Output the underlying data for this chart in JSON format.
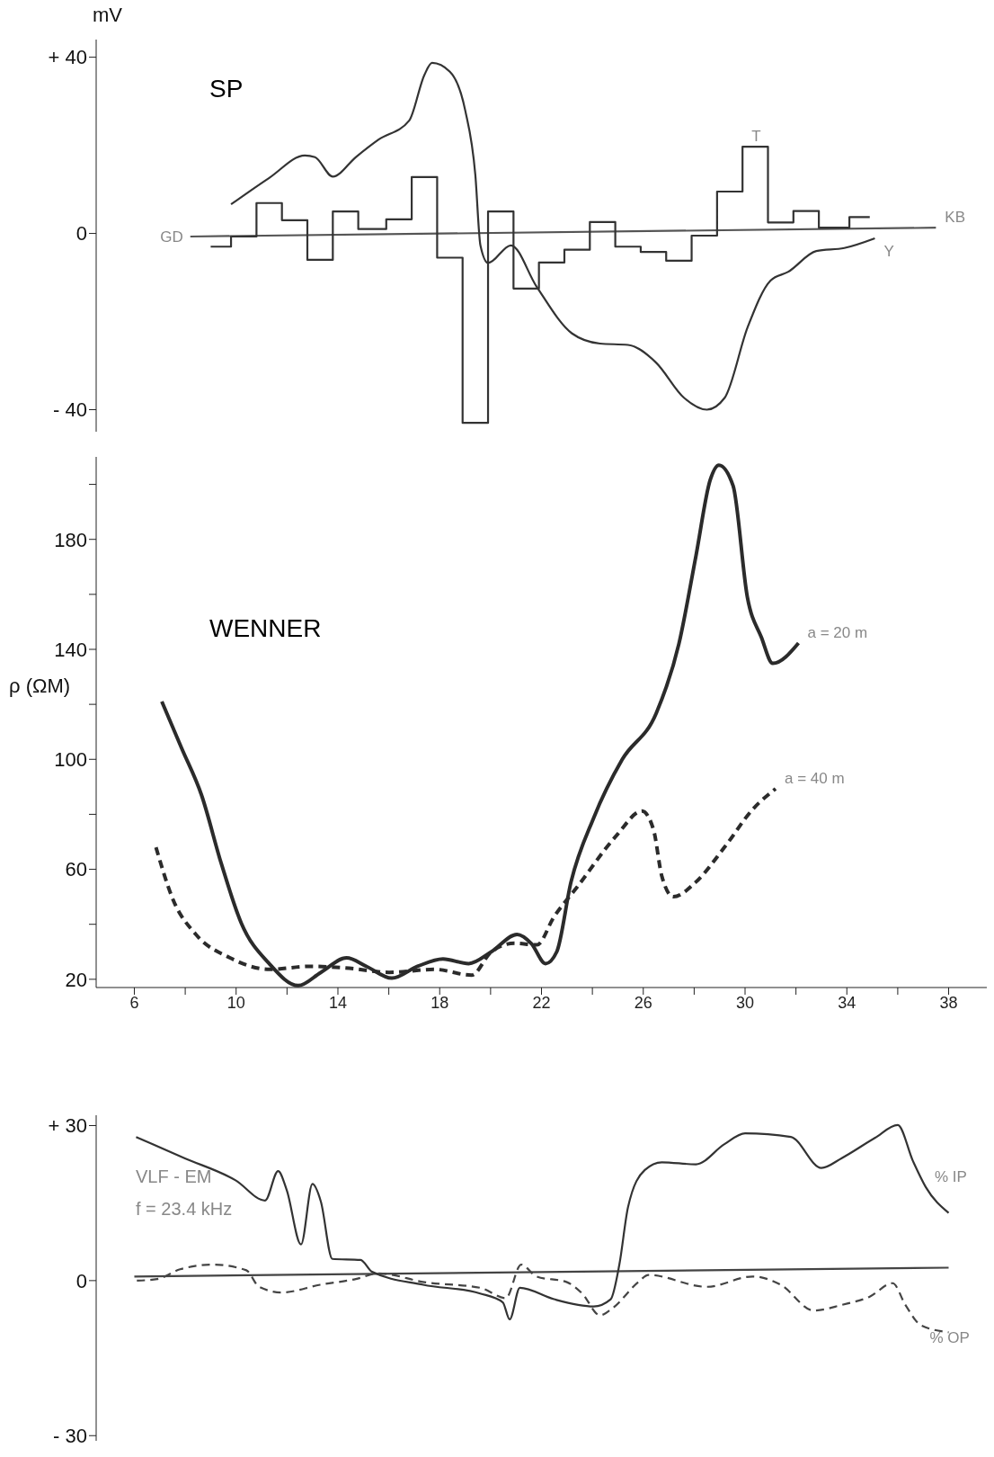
{
  "chart_data": [
    {
      "type": "line",
      "title": "SP",
      "ylabel": "mV",
      "xlim": [
        4.5,
        39.5
      ],
      "ylim": [
        -45,
        44
      ],
      "yticks": [
        {
          "value": 40,
          "label": "+ 40"
        },
        0,
        {
          "value": -40,
          "label": "- 40"
        }
      ],
      "tick_labels": "y",
      "legend": false,
      "grid": false,
      "series": [
        {
          "type": "line",
          "color": "#555555",
          "line_style": "solid",
          "x": [
            8.2,
            37.5
          ],
          "values": [
            -0.7,
            1.3
          ]
        },
        {
          "type": "step",
          "color": "#333333",
          "line_style": "solid",
          "x": [
            9,
            9.8,
            10.8,
            11.8,
            12.8,
            13.8,
            14.8,
            15.9,
            16.9,
            17.9,
            18.9,
            19.9,
            20.9,
            21.9,
            22.9,
            23.9,
            24.9,
            25.9,
            26.9,
            27.9,
            28.9,
            29.9,
            30.9,
            31.9,
            32.9,
            34.1,
            34.9
          ],
          "values": [
            -3,
            -0.7,
            6.9,
            3,
            -6,
            5,
            1,
            3.2,
            12.8,
            -5.5,
            -43,
            5,
            -12.5,
            -6.6,
            -3.7,
            2.6,
            -3,
            -4.2,
            -6.2,
            -0.5,
            9.5,
            19.7,
            2.5,
            5.1,
            1.3,
            3.7,
            3.7
          ]
        },
        {
          "type": "line",
          "color": "#333333",
          "line_style": "solid",
          "x": [
            9.8,
            11.3,
            12.7,
            13.1,
            13.8,
            14.7,
            15.6,
            16.8,
            17.4,
            17.7,
            18.4,
            19.0,
            19.4,
            19.6,
            19.9,
            20.8,
            21.8,
            23.2,
            24.3,
            25.4,
            26.5,
            27.6,
            28.5,
            29.2,
            30.1,
            31.0,
            31.7,
            32.8,
            33.9,
            35.1
          ],
          "values": [
            6.6,
            12.6,
            17.7,
            17.3,
            12.9,
            17.3,
            21.3,
            25.6,
            36,
            38.7,
            36.7,
            28,
            13.3,
            -2.7,
            -6.7,
            -2.7,
            -12,
            -22.7,
            -25,
            -25.3,
            -29.3,
            -37.3,
            -40,
            -37.3,
            -21.3,
            -10.7,
            -8.7,
            -4,
            -3.3,
            -1.1
          ]
        }
      ],
      "annotations": [
        {
          "text": "GD",
          "x": 8.2,
          "y": -0.7
        },
        {
          "text": "KB",
          "x": 37.5,
          "y": 1.3
        },
        {
          "text": "T",
          "x": 29.9,
          "y": 19.7
        },
        {
          "text": "Y",
          "x": 35.1,
          "y": -1.1
        }
      ]
    },
    {
      "type": "line",
      "title": "WENNER",
      "ylabel": "ρ (ΩM)",
      "xlim": [
        4.5,
        39.5
      ],
      "ylim": [
        17,
        210
      ],
      "xticks": [
        6,
        {
          "value": 8,
          "label": null
        },
        10,
        {
          "value": 12,
          "label": null
        },
        14,
        {
          "value": 16,
          "label": null
        },
        18,
        {
          "value": 20,
          "label": null
        },
        22,
        {
          "value": 24,
          "label": null
        },
        26,
        {
          "value": 28,
          "label": null
        },
        30,
        {
          "value": 32,
          "label": null
        },
        34,
        {
          "value": 36,
          "label": null
        },
        38
      ],
      "yticks": [
        20,
        {
          "value": 40,
          "label": null
        },
        60,
        {
          "value": 80,
          "label": null
        },
        100,
        {
          "value": 120,
          "label": null
        },
        140,
        {
          "value": 160,
          "label": null
        },
        180,
        {
          "value": 200,
          "label": null
        }
      ],
      "legend": false,
      "grid": false,
      "series": [
        {
          "type": "line",
          "color": "#2b2b2b",
          "line_style": "solid",
          "x": [
            7.08,
            7.86,
            8.64,
            9.42,
            10.2,
            11.3,
            12.44,
            13.33,
            14.34,
            15.12,
            16.12,
            17.13,
            18.13,
            19.14,
            20.03,
            21.04,
            21.6,
            22.16,
            22.6,
            23.16,
            24.05,
            25.17,
            26.51,
            27.4,
            28.07,
            28.63,
            28.97,
            29.53,
            30.09,
            30.64,
            31.09,
            32.1
          ],
          "values": [
            121,
            104,
            87,
            62,
            40.5,
            25.7,
            17.7,
            22.5,
            27.8,
            24.7,
            20.4,
            24.7,
            27.4,
            25.7,
            30,
            36.3,
            33,
            25.7,
            30,
            55.4,
            78.7,
            99.9,
            116.8,
            142,
            174,
            201.6,
            207,
            199.5,
            159,
            144.4,
            134.9,
            142.3
          ]
        },
        {
          "type": "line",
          "color": "#2b2b2b",
          "line_style": "dashed",
          "x": [
            6.85,
            7.52,
            8.42,
            9.76,
            11.32,
            12.9,
            14.45,
            16.01,
            17.8,
            19.25,
            20.03,
            20.93,
            21.82,
            22.49,
            23.38,
            24.95,
            25.95,
            26.4,
            26.73,
            27.18,
            28.07,
            29.19,
            30.31,
            31.2
          ],
          "values": [
            68,
            49,
            36.3,
            27.8,
            23.6,
            24.7,
            24,
            22.5,
            23.6,
            21.5,
            30,
            33.1,
            32.5,
            42.7,
            53.3,
            72.3,
            81.2,
            74.5,
            57.5,
            50,
            55.4,
            68,
            81.9,
            89.3
          ]
        }
      ],
      "annotations": [
        {
          "text": "a = 20 m",
          "x": 32.1,
          "y": 142.3
        },
        {
          "text": "a = 40 m",
          "x": 31.2,
          "y": 89.3
        }
      ]
    },
    {
      "type": "line",
      "xlim": [
        4.5,
        39.5
      ],
      "ylim": [
        -31,
        32
      ],
      "yticks": [
        {
          "value": 30,
          "label": "+ 30"
        },
        0,
        {
          "value": -30,
          "label": "- 30"
        }
      ],
      "tick_labels": "y",
      "legend": false,
      "grid": false,
      "series": [
        {
          "type": "line",
          "color": "#444444",
          "line_style": "solid",
          "x": [
            6,
            38
          ],
          "values": [
            0.8,
            2.5
          ]
        },
        {
          "type": "line",
          "color": "#333333",
          "line_style": "solid",
          "x": [
            6.07,
            7.97,
            9.98,
            11.14,
            11.65,
            11.99,
            12.55,
            13.0,
            13.33,
            13.78,
            14.89,
            15.34,
            17.35,
            19.59,
            20.48,
            20.75,
            21.15,
            22.49,
            24.05,
            24.72,
            25.06,
            25.4,
            26.06,
            26.73,
            28.07,
            29.19,
            30.0,
            31.8,
            33.0,
            33.8,
            35.1,
            36.0,
            36.6,
            37.1,
            38.0
          ],
          "values": [
            27.8,
            23.7,
            19.4,
            15.5,
            21.2,
            17.5,
            7,
            18.7,
            15.3,
            4.2,
            4,
            1.7,
            -0.8,
            -2.5,
            -4.2,
            -7.5,
            -1.4,
            -3.6,
            -5,
            -3.6,
            3.1,
            14.2,
            21.4,
            22.9,
            22.5,
            26.4,
            28.5,
            27.8,
            21.8,
            23.7,
            27.6,
            30.1,
            23.1,
            18.1,
            13.1
          ]
        },
        {
          "type": "line",
          "color": "#444444",
          "line_style": "dashed",
          "x": [
            6.1,
            6.9,
            7.8,
            9.1,
            10.4,
            10.9,
            11.8,
            13.3,
            14.7,
            15.6,
            17.4,
            19.6,
            20.6,
            21.2,
            21.8,
            23.0,
            23.6,
            24.3,
            24.8,
            25.8,
            26.2,
            28.5,
            30.3,
            31.4,
            32.7,
            33.8,
            34.9,
            35.8,
            36.3,
            36.9,
            38.0
          ],
          "values": [
            0,
            0.3,
            2.2,
            3.1,
            2,
            -1.2,
            -2.3,
            -0.8,
            0.3,
            1.4,
            -0.3,
            -1.4,
            -3.4,
            3.1,
            0.8,
            -0.3,
            -2.5,
            -6.7,
            -5.3,
            -0.3,
            1.1,
            -1.2,
            0.8,
            -0.8,
            -5.8,
            -4.7,
            -3.1,
            -0.5,
            -4.7,
            -8.6,
            -10
          ]
        }
      ],
      "annotations": [
        "VLF - EM",
        "f = 23.4 kHz",
        {
          "text": "% IP",
          "x": 37.1,
          "y": 18.1
        },
        {
          "text": "% OP",
          "x": 36.9,
          "y": -8.6
        }
      ]
    }
  ]
}
